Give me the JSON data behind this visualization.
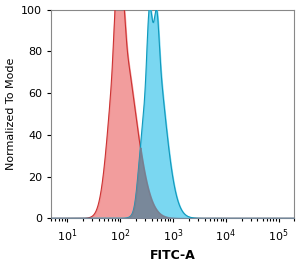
{
  "title": "",
  "xlabel": "FITC-A",
  "ylabel": "Normalized To Mode",
  "xlim": [
    5,
    200000
  ],
  "ylim": [
    0,
    100
  ],
  "yticks": [
    0,
    20,
    40,
    60,
    80,
    100
  ],
  "xtick_locs": [
    10,
    100,
    1000,
    10000,
    100000
  ],
  "xtick_labels": [
    "10$^1$",
    "10$^2$",
    "10$^3$",
    "10$^4$",
    "10$^5$"
  ],
  "red_color": "#F08888",
  "red_edge": "#CC3333",
  "blue_color": "#55CCEE",
  "blue_edge": "#1199BB",
  "overlap_color": "#7A7A8A",
  "background": "#ffffff",
  "ylabel_fontsize": 8,
  "xlabel_fontsize": 9,
  "tick_fontsize": 8
}
